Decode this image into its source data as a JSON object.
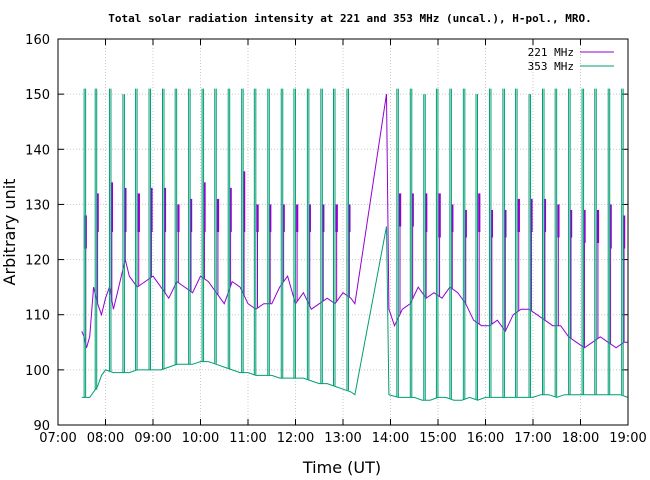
{
  "chart_data": {
    "type": "line",
    "title": "Total solar radiation intensity at 221 and 353 MHz (uncal.), H-pol., MRO.",
    "xlabel": "Time (UT)",
    "ylabel": "Arbitrary unit",
    "x_ticks": [
      "07:00",
      "08:00",
      "09:00",
      "10:00",
      "11:00",
      "12:00",
      "13:00",
      "14:00",
      "15:00",
      "16:00",
      "17:00",
      "18:00",
      "19:00"
    ],
    "y_ticks": [
      "90",
      "100",
      "110",
      "120",
      "130",
      "140",
      "150",
      "160"
    ],
    "xlim": [
      "07:00",
      "19:00"
    ],
    "ylim": [
      90,
      160
    ],
    "grid": true,
    "legend_position": "top-right",
    "series": [
      {
        "name": "221 MHz",
        "color": "#9400d3",
        "points": [
          [
            "07:30",
            107
          ],
          [
            "07:33",
            106
          ],
          [
            "07:36",
            104
          ],
          [
            "07:40",
            106
          ],
          [
            "07:45",
            115
          ],
          [
            "07:50",
            112
          ],
          [
            "07:55",
            110
          ],
          [
            "08:00",
            113
          ],
          [
            "08:05",
            115
          ],
          [
            "08:10",
            111
          ],
          [
            "08:15",
            114
          ],
          [
            "08:20",
            117
          ],
          [
            "08:25",
            120
          ],
          [
            "08:30",
            117
          ],
          [
            "08:40",
            115
          ],
          [
            "08:50",
            116
          ],
          [
            "09:00",
            117
          ],
          [
            "09:10",
            115
          ],
          [
            "09:20",
            113
          ],
          [
            "09:30",
            116
          ],
          [
            "09:40",
            115
          ],
          [
            "09:50",
            114
          ],
          [
            "10:00",
            117
          ],
          [
            "10:10",
            116
          ],
          [
            "10:20",
            114
          ],
          [
            "10:30",
            112
          ],
          [
            "10:40",
            116
          ],
          [
            "10:50",
            115
          ],
          [
            "11:00",
            112
          ],
          [
            "11:10",
            111
          ],
          [
            "11:20",
            112
          ],
          [
            "11:30",
            112
          ],
          [
            "11:40",
            115
          ],
          [
            "11:50",
            117
          ],
          [
            "12:00",
            112
          ],
          [
            "12:10",
            114
          ],
          [
            "12:20",
            111
          ],
          [
            "12:30",
            112
          ],
          [
            "12:40",
            113
          ],
          [
            "12:50",
            112
          ],
          [
            "13:00",
            114
          ],
          [
            "13:10",
            113
          ],
          [
            "13:15",
            112
          ],
          [
            "13:55",
            150
          ],
          [
            "13:58",
            111
          ],
          [
            "14:05",
            108
          ],
          [
            "14:15",
            111
          ],
          [
            "14:25",
            112
          ],
          [
            "14:35",
            115
          ],
          [
            "14:45",
            113
          ],
          [
            "14:55",
            114
          ],
          [
            "15:05",
            113
          ],
          [
            "15:15",
            115
          ],
          [
            "15:25",
            114
          ],
          [
            "15:35",
            112
          ],
          [
            "15:45",
            109
          ],
          [
            "15:55",
            108
          ],
          [
            "16:05",
            108
          ],
          [
            "16:15",
            109
          ],
          [
            "16:25",
            107
          ],
          [
            "16:35",
            110
          ],
          [
            "16:45",
            111
          ],
          [
            "16:55",
            111
          ],
          [
            "17:05",
            110
          ],
          [
            "17:15",
            109
          ],
          [
            "17:25",
            108
          ],
          [
            "17:35",
            108
          ],
          [
            "17:45",
            106
          ],
          [
            "17:55",
            105
          ],
          [
            "18:05",
            104
          ],
          [
            "18:15",
            105
          ],
          [
            "18:25",
            106
          ],
          [
            "18:35",
            105
          ],
          [
            "18:45",
            104
          ],
          [
            "18:55",
            105
          ],
          [
            "19:00",
            105
          ]
        ],
        "spikes": {
          "times": [
            "07:35",
            "07:50",
            "08:08",
            "08:25",
            "08:42",
            "08:58",
            "09:15",
            "09:32",
            "09:48",
            "10:05",
            "10:22",
            "10:38",
            "10:55",
            "11:12",
            "11:28",
            "11:45",
            "12:02",
            "12:18",
            "12:35",
            "12:52",
            "13:08",
            "14:12",
            "14:28",
            "14:45",
            "15:02",
            "15:18",
            "15:35",
            "15:52",
            "16:08",
            "16:25",
            "16:42",
            "16:58",
            "17:15",
            "17:32",
            "17:48",
            "18:05",
            "18:22",
            "18:38",
            "18:55"
          ],
          "low": [
            122,
            125,
            125,
            125,
            125,
            125,
            125,
            125,
            125,
            125,
            125,
            125,
            125,
            125,
            125,
            125,
            125,
            125,
            125,
            125,
            125,
            126,
            126,
            125,
            124,
            125,
            124,
            125,
            124,
            124,
            125,
            125,
            125,
            124,
            124,
            123,
            123,
            122,
            122
          ],
          "high": [
            128,
            132,
            134,
            133,
            132,
            133,
            133,
            130,
            131,
            134,
            131,
            133,
            136,
            130,
            130,
            130,
            130,
            130,
            130,
            130,
            130,
            132,
            132,
            132,
            132,
            130,
            129,
            132,
            129,
            129,
            131,
            131,
            131,
            130,
            129,
            129,
            129,
            130,
            128
          ]
        }
      },
      {
        "name": "353 MHz",
        "color": "#009e73",
        "points": [
          [
            "07:30",
            95
          ],
          [
            "07:40",
            95
          ],
          [
            "07:45",
            96
          ],
          [
            "07:50",
            97
          ],
          [
            "07:55",
            99
          ],
          [
            "08:00",
            100
          ],
          [
            "08:10",
            99.5
          ],
          [
            "08:20",
            99.5
          ],
          [
            "08:30",
            99.5
          ],
          [
            "08:40",
            100
          ],
          [
            "08:50",
            100
          ],
          [
            "09:00",
            100
          ],
          [
            "09:10",
            100
          ],
          [
            "09:20",
            100.5
          ],
          [
            "09:30",
            101
          ],
          [
            "09:40",
            101
          ],
          [
            "09:50",
            101
          ],
          [
            "10:00",
            101.5
          ],
          [
            "10:10",
            101.5
          ],
          [
            "10:20",
            101
          ],
          [
            "10:30",
            100.5
          ],
          [
            "10:40",
            100
          ],
          [
            "10:50",
            99.5
          ],
          [
            "11:00",
            99.5
          ],
          [
            "11:10",
            99
          ],
          [
            "11:20",
            99
          ],
          [
            "11:30",
            99
          ],
          [
            "11:40",
            98.5
          ],
          [
            "11:50",
            98.5
          ],
          [
            "12:00",
            98.5
          ],
          [
            "12:10",
            98.5
          ],
          [
            "12:20",
            98
          ],
          [
            "12:30",
            97.5
          ],
          [
            "12:40",
            97.5
          ],
          [
            "12:50",
            97
          ],
          [
            "13:00",
            96.5
          ],
          [
            "13:10",
            96
          ],
          [
            "13:15",
            95.5
          ],
          [
            "13:55",
            126
          ],
          [
            "13:58",
            95.5
          ],
          [
            "14:10",
            95
          ],
          [
            "14:20",
            95
          ],
          [
            "14:30",
            95
          ],
          [
            "14:40",
            94.5
          ],
          [
            "14:50",
            94.5
          ],
          [
            "15:00",
            95
          ],
          [
            "15:10",
            95
          ],
          [
            "15:20",
            94.5
          ],
          [
            "15:30",
            94.5
          ],
          [
            "15:40",
            95
          ],
          [
            "15:50",
            94.5
          ],
          [
            "16:00",
            95
          ],
          [
            "16:10",
            95
          ],
          [
            "16:20",
            95
          ],
          [
            "16:30",
            95
          ],
          [
            "16:40",
            95
          ],
          [
            "16:50",
            95
          ],
          [
            "17:00",
            95
          ],
          [
            "17:10",
            95.5
          ],
          [
            "17:20",
            95.5
          ],
          [
            "17:30",
            95
          ],
          [
            "17:40",
            95.5
          ],
          [
            "17:50",
            95.5
          ],
          [
            "18:00",
            95.5
          ],
          [
            "18:10",
            95.5
          ],
          [
            "18:20",
            95.5
          ],
          [
            "18:30",
            95.5
          ],
          [
            "18:40",
            95.5
          ],
          [
            "18:50",
            95.5
          ],
          [
            "19:00",
            95
          ]
        ],
        "spikes": {
          "times": [
            "07:33",
            "07:47",
            "08:05",
            "08:22",
            "08:38",
            "08:55",
            "09:12",
            "09:28",
            "09:45",
            "10:02",
            "10:18",
            "10:35",
            "10:52",
            "11:08",
            "11:25",
            "11:42",
            "11:58",
            "12:15",
            "12:32",
            "12:48",
            "13:05",
            "14:08",
            "14:25",
            "14:42",
            "14:58",
            "15:15",
            "15:32",
            "15:48",
            "16:05",
            "16:22",
            "16:38",
            "16:55",
            "17:12",
            "17:28",
            "17:45",
            "18:02",
            "18:18",
            "18:35",
            "18:52"
          ],
          "high": [
            151,
            151,
            151,
            150,
            151,
            151,
            151,
            151,
            151,
            151,
            151,
            151,
            151,
            151,
            151,
            151,
            151,
            151,
            151,
            151,
            151,
            151,
            151,
            150,
            151,
            151,
            151,
            150,
            151,
            151,
            151,
            150,
            151,
            151,
            151,
            151,
            151,
            151,
            151
          ]
        }
      }
    ]
  }
}
